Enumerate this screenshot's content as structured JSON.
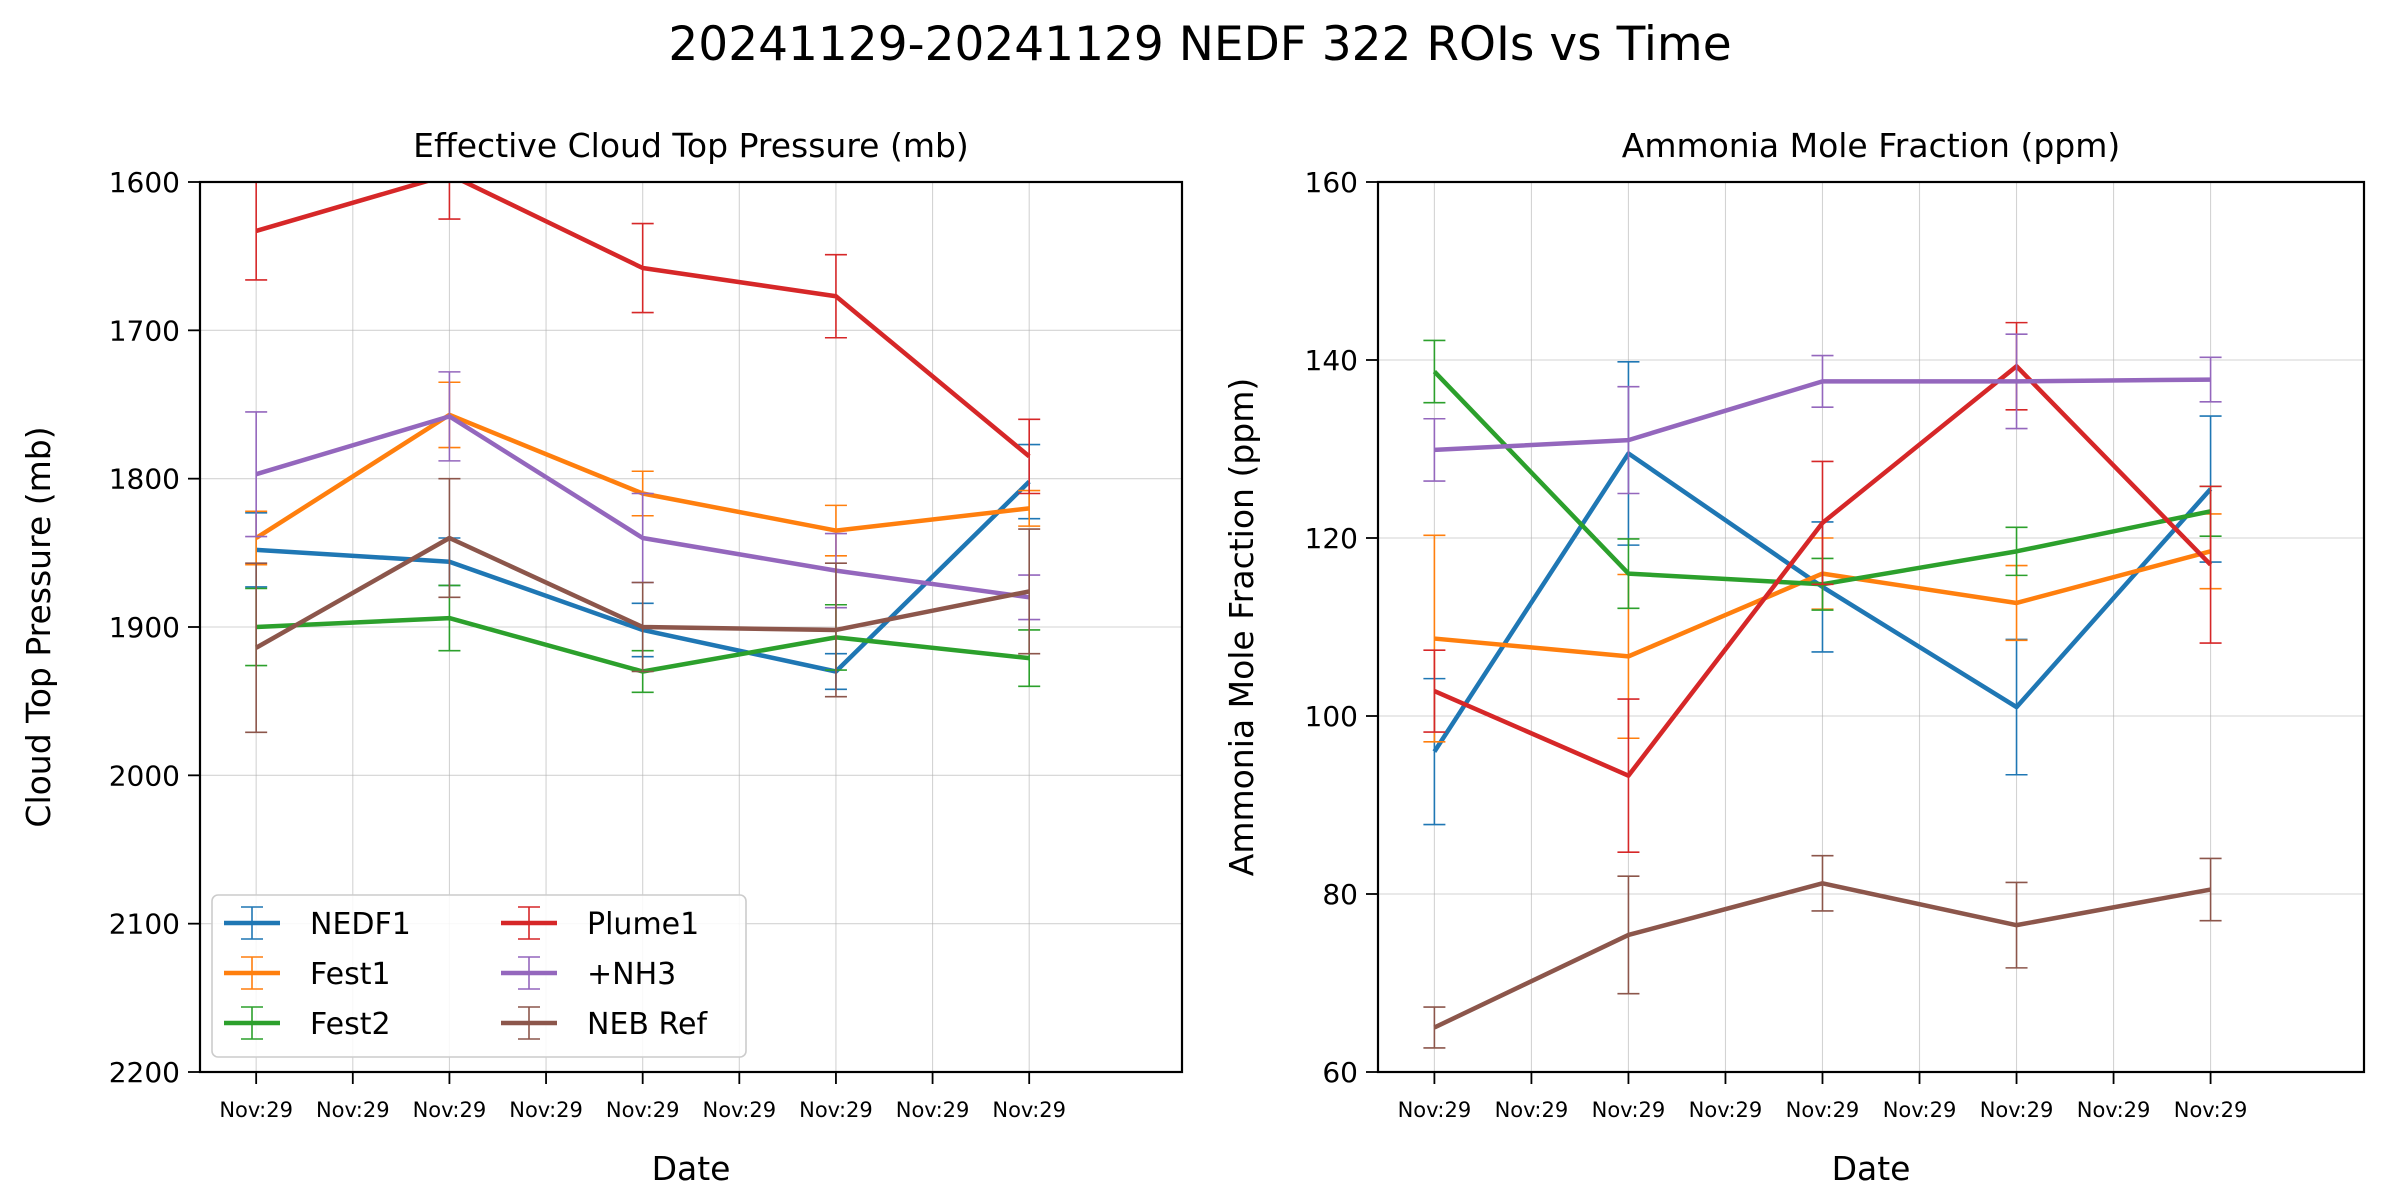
{
  "figure": {
    "title": "20241129-20241129 NEDF 322 ROIs vs Time"
  },
  "chart_data": [
    {
      "type": "line",
      "title": "Effective Cloud Top Pressure (mb)",
      "xlabel": "Date",
      "ylabel": "Cloud Top Pressure (mb)",
      "y_inverted": true,
      "ylim": [
        1600,
        2200
      ],
      "yticks": [
        "1600",
        "1700",
        "1800",
        "1900",
        "2000",
        "2100",
        "2200"
      ],
      "xtick_labels": [
        "Nov:29",
        "Nov:29",
        "Nov:29",
        "Nov:29",
        "Nov:29",
        "Nov:29",
        "Nov:29",
        "Nov:29",
        "Nov:29"
      ],
      "grid": true,
      "legend": {
        "placement": "lower-left",
        "columns": 2
      },
      "series": [
        {
          "name": "NEDF1",
          "color": "#1f77b4",
          "values": [
            1848,
            1856,
            1902,
            1930,
            1802
          ],
          "errors": [
            25,
            16,
            18,
            12,
            25
          ]
        },
        {
          "name": "Fest1",
          "color": "#ff7f0e",
          "values": [
            1840,
            1757,
            1810,
            1835,
            1820
          ],
          "errors": [
            18,
            22,
            15,
            17,
            12
          ]
        },
        {
          "name": "Fest2",
          "color": "#2ca02c",
          "values": [
            1900,
            1894,
            1930,
            1907,
            1921
          ],
          "errors": [
            26,
            22,
            14,
            22,
            19
          ]
        },
        {
          "name": "Plume1",
          "color": "#d62728",
          "values": [
            1633,
            1595,
            1658,
            1677,
            1785
          ],
          "errors": [
            33,
            30,
            30,
            28,
            25
          ]
        },
        {
          "name": "+NH3",
          "color": "#9467bd",
          "values": [
            1797,
            1758,
            1840,
            1862,
            1880
          ],
          "errors": [
            42,
            30,
            30,
            25,
            15
          ]
        },
        {
          "name": "NEB Ref",
          "color": "#8c564b",
          "values": [
            1914,
            1840,
            1900,
            1902,
            1876
          ],
          "errors": [
            57,
            40,
            30,
            45,
            42
          ]
        }
      ]
    },
    {
      "type": "line",
      "title": "Ammonia Mole Fraction (ppm)",
      "xlabel": "Date",
      "ylabel": "Ammonia Mole Fraction (ppm)",
      "ylim": [
        60,
        160
      ],
      "yticks": [
        "60",
        "80",
        "100",
        "120",
        "140",
        "160"
      ],
      "xtick_labels": [
        "Nov:29",
        "Nov:29",
        "Nov:29",
        "Nov:29",
        "Nov:29",
        "Nov:29",
        "Nov:29",
        "Nov:29",
        "Nov:29"
      ],
      "grid": true,
      "series": [
        {
          "name": "NEDF1",
          "color": "#1f77b4",
          "values": [
            96,
            129.5,
            114.5,
            101,
            125.5
          ],
          "errors": [
            8.2,
            10.3,
            7.3,
            7.6,
            8.2
          ]
        },
        {
          "name": "Fest1",
          "color": "#ff7f0e",
          "values": [
            108.7,
            106.7,
            116,
            112.7,
            118.5
          ],
          "errors": [
            11.6,
            9.2,
            4,
            4.2,
            4.2
          ]
        },
        {
          "name": "Fest2",
          "color": "#2ca02c",
          "values": [
            138.7,
            116,
            114.8,
            118.5,
            123
          ],
          "errors": [
            3.5,
            3.9,
            2.9,
            2.7,
            2.8
          ]
        },
        {
          "name": "Plume1",
          "color": "#d62728",
          "values": [
            102.8,
            93.3,
            121.7,
            139.3,
            117
          ],
          "errors": [
            4.6,
            8.6,
            6.9,
            4.9,
            8.8
          ]
        },
        {
          "name": "+NH3",
          "color": "#9467bd",
          "values": [
            129.9,
            131,
            137.6,
            137.6,
            137.8
          ],
          "errors": [
            3.5,
            6,
            2.9,
            5.3,
            2.5
          ]
        },
        {
          "name": "NEB Ref",
          "color": "#8c564b",
          "values": [
            65,
            75.4,
            81.2,
            76.5,
            80.5
          ],
          "errors": [
            2.3,
            6.6,
            3.1,
            4.8,
            3.5
          ]
        }
      ]
    }
  ]
}
